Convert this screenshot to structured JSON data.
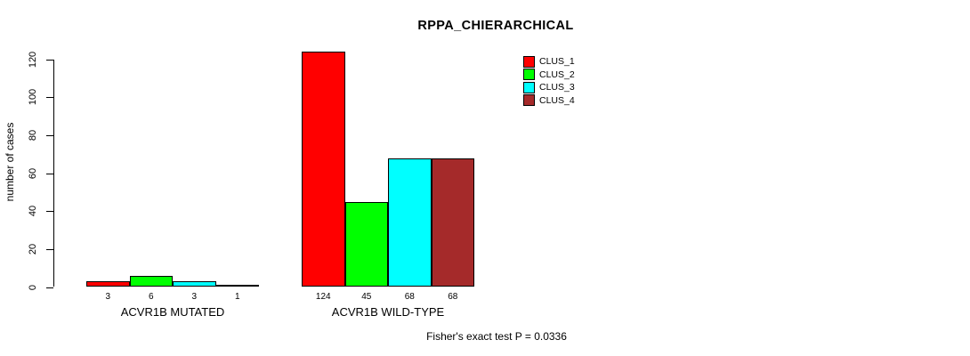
{
  "chart_data": {
    "type": "bar",
    "title": "RPPA_CHIERARCHICAL",
    "xlabel": "",
    "ylabel": "number of cases",
    "ylim": [
      0,
      120
    ],
    "yticks": [
      0,
      20,
      40,
      60,
      80,
      100,
      120
    ],
    "grid": false,
    "categories": [
      "ACVR1B MUTATED",
      "ACVR1B WILD-TYPE"
    ],
    "series": [
      {
        "name": "CLUS_1",
        "color": "#FF0000",
        "values": [
          3,
          124
        ]
      },
      {
        "name": "CLUS_2",
        "color": "#00FF00",
        "values": [
          6,
          45
        ]
      },
      {
        "name": "CLUS_3",
        "color": "#00FFFF",
        "values": [
          3,
          68
        ]
      },
      {
        "name": "CLUS_4",
        "color": "#A52A2A",
        "values": [
          1,
          68
        ]
      }
    ],
    "show_bar_value_labels": true,
    "legend": {
      "position": "top-right",
      "entries": [
        "CLUS_1",
        "CLUS_2",
        "CLUS_3",
        "CLUS_4"
      ]
    },
    "annotation": "Fisher's exact test P = 0.0336",
    "colors": {
      "background": "#ffffff",
      "axis": "#000000",
      "text": "#000000",
      "bar_border": "#000000"
    }
  }
}
